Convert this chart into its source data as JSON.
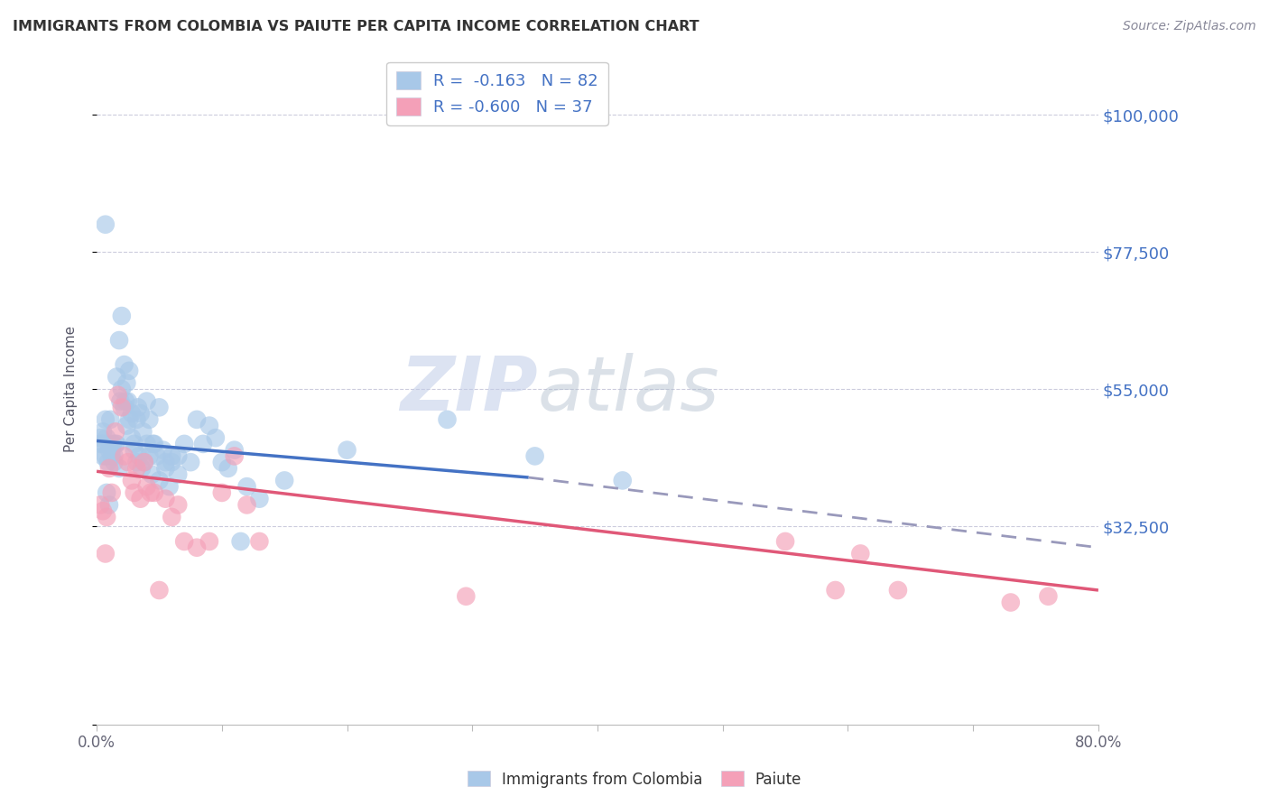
{
  "title": "IMMIGRANTS FROM COLOMBIA VS PAIUTE PER CAPITA INCOME CORRELATION CHART",
  "source": "Source: ZipAtlas.com",
  "ylabel": "Per Capita Income",
  "xlim": [
    0.0,
    0.8
  ],
  "ylim": [
    0,
    110000
  ],
  "yticks": [
    0,
    32500,
    55000,
    77500,
    100000
  ],
  "ytick_labels": [
    "",
    "$32,500",
    "$55,000",
    "$77,500",
    "$100,000"
  ],
  "xticks": [
    0.0,
    0.1,
    0.2,
    0.3,
    0.4,
    0.5,
    0.6,
    0.7,
    0.8
  ],
  "xtick_labels": [
    "0.0%",
    "",
    "",
    "",
    "",
    "",
    "",
    "",
    "80.0%"
  ],
  "color_blue": "#a8c8e8",
  "color_pink": "#f4a0b8",
  "color_blue_line": "#4472c4",
  "color_pink_line": "#e05878",
  "color_dashed": "#9999bb",
  "color_ytick_label": "#4472c4",
  "watermark_zip": "#c5d5ee",
  "watermark_atlas": "#b8c8d8",
  "blue_line_x0": 0.0,
  "blue_line_x1": 0.345,
  "blue_line_y0": 46500,
  "blue_line_y1": 40500,
  "dash_line_x0": 0.345,
  "dash_line_x1": 0.8,
  "dash_line_y0": 40500,
  "dash_line_y1": 29000,
  "pink_line_x0": 0.0,
  "pink_line_x1": 0.8,
  "pink_line_y0": 41500,
  "pink_line_y1": 22000,
  "blue_scatter_x": [
    0.003,
    0.005,
    0.006,
    0.007,
    0.007,
    0.008,
    0.009,
    0.01,
    0.011,
    0.012,
    0.013,
    0.014,
    0.015,
    0.016,
    0.018,
    0.019,
    0.02,
    0.022,
    0.023,
    0.024,
    0.025,
    0.026,
    0.028,
    0.03,
    0.032,
    0.033,
    0.035,
    0.037,
    0.04,
    0.042,
    0.045,
    0.048,
    0.05,
    0.053,
    0.055,
    0.058,
    0.06,
    0.065,
    0.07,
    0.075,
    0.08,
    0.085,
    0.09,
    0.095,
    0.1,
    0.105,
    0.11,
    0.12,
    0.13,
    0.15,
    0.003,
    0.005,
    0.007,
    0.008,
    0.01,
    0.012,
    0.014,
    0.016,
    0.018,
    0.02,
    0.022,
    0.024,
    0.026,
    0.028,
    0.03,
    0.032,
    0.034,
    0.036,
    0.038,
    0.04,
    0.042,
    0.044,
    0.046,
    0.05,
    0.055,
    0.06,
    0.065,
    0.115,
    0.2,
    0.28,
    0.35,
    0.42
  ],
  "blue_scatter_y": [
    47000,
    48000,
    46000,
    44000,
    50000,
    47000,
    43000,
    45000,
    50000,
    44000,
    46000,
    43000,
    46000,
    57000,
    63000,
    53000,
    67000,
    59000,
    53000,
    56000,
    53000,
    58000,
    51000,
    46000,
    50000,
    52000,
    51000,
    48000,
    53000,
    50000,
    46000,
    44000,
    40000,
    45000,
    42000,
    39000,
    43000,
    44000,
    46000,
    43000,
    50000,
    46000,
    49000,
    47000,
    43000,
    42000,
    45000,
    39000,
    37000,
    40000,
    46000,
    44000,
    82000,
    38000,
    36000,
    45000,
    44000,
    46000,
    42000,
    55000,
    52000,
    49000,
    50000,
    47000,
    45000,
    43000,
    44000,
    42000,
    43000,
    46000,
    44000,
    41000,
    46000,
    52000,
    43000,
    44000,
    41000,
    30000,
    45000,
    50000,
    44000,
    40000
  ],
  "pink_scatter_x": [
    0.003,
    0.005,
    0.007,
    0.008,
    0.01,
    0.012,
    0.015,
    0.017,
    0.02,
    0.022,
    0.025,
    0.028,
    0.03,
    0.032,
    0.035,
    0.038,
    0.04,
    0.043,
    0.046,
    0.05,
    0.055,
    0.06,
    0.065,
    0.07,
    0.08,
    0.09,
    0.1,
    0.11,
    0.12,
    0.13,
    0.295,
    0.55,
    0.59,
    0.61,
    0.64,
    0.73,
    0.76
  ],
  "pink_scatter_y": [
    36000,
    35000,
    28000,
    34000,
    42000,
    38000,
    48000,
    54000,
    52000,
    44000,
    43000,
    40000,
    38000,
    42000,
    37000,
    43000,
    39000,
    38000,
    38000,
    22000,
    37000,
    34000,
    36000,
    30000,
    29000,
    30000,
    38000,
    44000,
    36000,
    30000,
    21000,
    30000,
    22000,
    28000,
    22000,
    20000,
    21000
  ]
}
